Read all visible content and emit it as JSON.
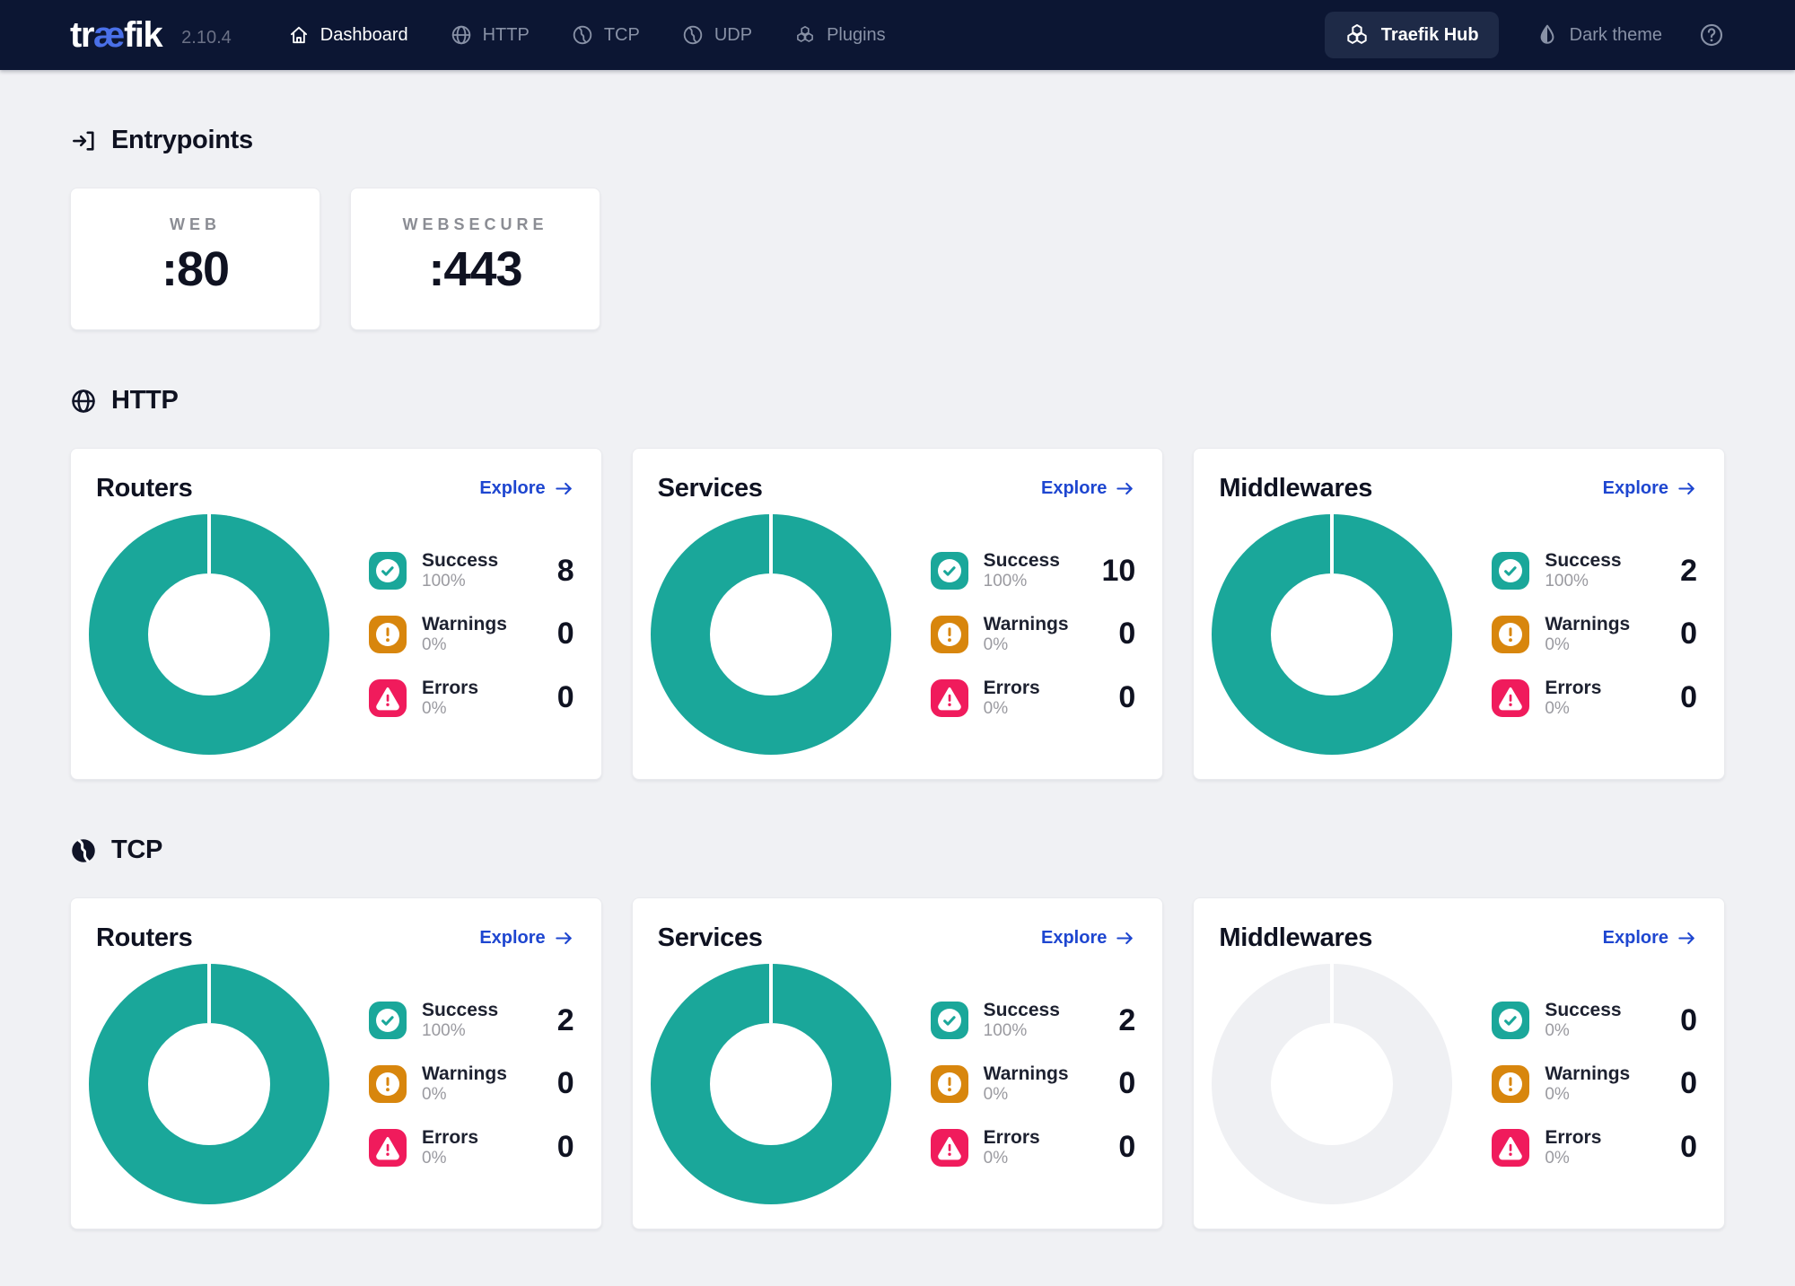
{
  "navbar": {
    "logo": {
      "pre": "tr",
      "ae": "æ",
      "post": "fik"
    },
    "version": "2.10.4",
    "items": [
      {
        "label": "Dashboard",
        "icon": "home-icon",
        "active": true
      },
      {
        "label": "HTTP",
        "icon": "globe-icon",
        "active": false
      },
      {
        "label": "TCP",
        "icon": "tcp-icon",
        "active": false
      },
      {
        "label": "UDP",
        "icon": "udp-icon",
        "active": false
      },
      {
        "label": "Plugins",
        "icon": "plugins-icon",
        "active": false
      }
    ],
    "hub_button_label": "Traefik Hub",
    "theme_label": "Dark theme",
    "right_icons": [
      "hub-hexagons-icon",
      "droplet-icon",
      "help-icon"
    ]
  },
  "colors": {
    "navbar_bg": "#0c1633",
    "page_bg": "#f0f1f4",
    "success_teal": "#1aa79a",
    "warning_orange": "#d8860d",
    "error_red": "#f01b5c",
    "link_blue": "#1e46d0",
    "logo_blue": "#4a70e8",
    "empty_donut_gray": "#eff0f3"
  },
  "entrypoints": {
    "title": "Entrypoints",
    "icon": "login-arrow-icon",
    "cards": [
      {
        "name": "WEB",
        "port": ":80"
      },
      {
        "name": "WEBSECURE",
        "port": ":443"
      }
    ]
  },
  "sections": [
    {
      "id": "http",
      "title": "HTTP",
      "icon": "globe-bold-icon",
      "cards": [
        {
          "title": "Routers",
          "explore_label": "Explore",
          "donut_empty": false,
          "donut_pct": 100,
          "stats": [
            {
              "type": "success",
              "icon": "check-icon",
              "label": "Success",
              "pct": "100%",
              "value": "8"
            },
            {
              "type": "warnings",
              "icon": "exclamation-icon",
              "label": "Warnings",
              "pct": "0%",
              "value": "0"
            },
            {
              "type": "errors",
              "icon": "warning-triangle-icon",
              "label": "Errors",
              "pct": "0%",
              "value": "0"
            }
          ]
        },
        {
          "title": "Services",
          "explore_label": "Explore",
          "donut_empty": false,
          "donut_pct": 100,
          "stats": [
            {
              "type": "success",
              "icon": "check-icon",
              "label": "Success",
              "pct": "100%",
              "value": "10"
            },
            {
              "type": "warnings",
              "icon": "exclamation-icon",
              "label": "Warnings",
              "pct": "0%",
              "value": "0"
            },
            {
              "type": "errors",
              "icon": "warning-triangle-icon",
              "label": "Errors",
              "pct": "0%",
              "value": "0"
            }
          ]
        },
        {
          "title": "Middlewares",
          "explore_label": "Explore",
          "donut_empty": false,
          "donut_pct": 100,
          "stats": [
            {
              "type": "success",
              "icon": "check-icon",
              "label": "Success",
              "pct": "100%",
              "value": "2"
            },
            {
              "type": "warnings",
              "icon": "exclamation-icon",
              "label": "Warnings",
              "pct": "0%",
              "value": "0"
            },
            {
              "type": "errors",
              "icon": "warning-triangle-icon",
              "label": "Errors",
              "pct": "0%",
              "value": "0"
            }
          ]
        }
      ]
    },
    {
      "id": "tcp",
      "title": "TCP",
      "icon": "tcp-filled-icon",
      "cards": [
        {
          "title": "Routers",
          "explore_label": "Explore",
          "donut_empty": false,
          "donut_pct": 100,
          "stats": [
            {
              "type": "success",
              "icon": "check-icon",
              "label": "Success",
              "pct": "100%",
              "value": "2"
            },
            {
              "type": "warnings",
              "icon": "exclamation-icon",
              "label": "Warnings",
              "pct": "0%",
              "value": "0"
            },
            {
              "type": "errors",
              "icon": "warning-triangle-icon",
              "label": "Errors",
              "pct": "0%",
              "value": "0"
            }
          ]
        },
        {
          "title": "Services",
          "explore_label": "Explore",
          "donut_empty": false,
          "donut_pct": 100,
          "stats": [
            {
              "type": "success",
              "icon": "check-icon",
              "label": "Success",
              "pct": "100%",
              "value": "2"
            },
            {
              "type": "warnings",
              "icon": "exclamation-icon",
              "label": "Warnings",
              "pct": "0%",
              "value": "0"
            },
            {
              "type": "errors",
              "icon": "warning-triangle-icon",
              "label": "Errors",
              "pct": "0%",
              "value": "0"
            }
          ]
        },
        {
          "title": "Middlewares",
          "explore_label": "Explore",
          "donut_empty": true,
          "donut_pct": 0,
          "stats": [
            {
              "type": "success",
              "icon": "check-icon",
              "label": "Success",
              "pct": "0%",
              "value": "0"
            },
            {
              "type": "warnings",
              "icon": "exclamation-icon",
              "label": "Warnings",
              "pct": "0%",
              "value": "0"
            },
            {
              "type": "errors",
              "icon": "warning-triangle-icon",
              "label": "Errors",
              "pct": "0%",
              "value": "0"
            }
          ]
        }
      ]
    }
  ]
}
